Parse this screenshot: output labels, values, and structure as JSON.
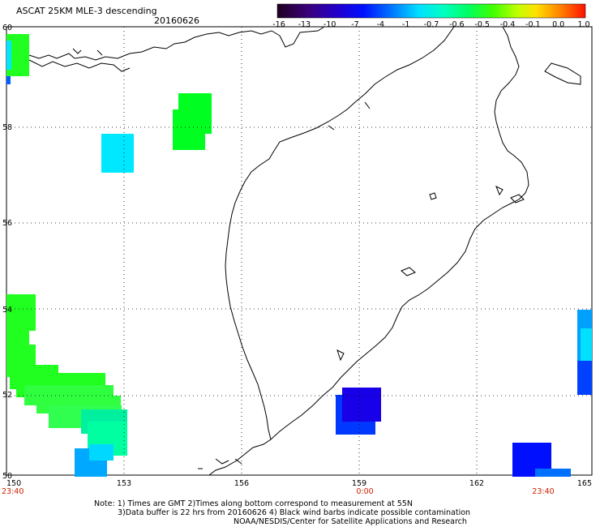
{
  "title": {
    "main": "ASCAT 25KM MLE-3 descending",
    "date": "20160626"
  },
  "colorbar": {
    "ticks": [
      "-16",
      "-13",
      "-10",
      "-7",
      "-4",
      "-1",
      "-0.7",
      "-0.6",
      "-0.5",
      "-0.4",
      "-0.1",
      "0.0",
      "1.0"
    ],
    "colors": [
      "#2a0030",
      "#3a007a",
      "#2400c8",
      "#0014ff",
      "#0070ff",
      "#00c8ff",
      "#00ffe0",
      "#00ff80",
      "#20ff20",
      "#a0ff00",
      "#ffff00",
      "#ff9000",
      "#ff2000"
    ]
  },
  "axes": {
    "lat_labels": [
      "60",
      "58",
      "56",
      "54",
      "52",
      "50"
    ],
    "lon_labels": [
      "150",
      "153",
      "156",
      "159",
      "162",
      "165"
    ],
    "time_labels": [
      "23:40",
      "0:00",
      "23:40"
    ],
    "time_color": "#cc2200"
  },
  "notes": {
    "line1": "Note: 1) Times are GMT 2)Times along bottom correspond to measurement at 55N",
    "line2": "3)Data buffer is 22 hrs from 20160626 4) Black wind barbs indicate possible contamination",
    "line3": "NOAA/NESDIS/Center for Satellite Applications and Research"
  },
  "colors": {
    "green": "#00ff20",
    "light_green": "#40ff60",
    "cyan": "#00e8ff",
    "sky": "#00a8ff",
    "blue": "#0028ff",
    "deep_blue": "#1800e8"
  }
}
